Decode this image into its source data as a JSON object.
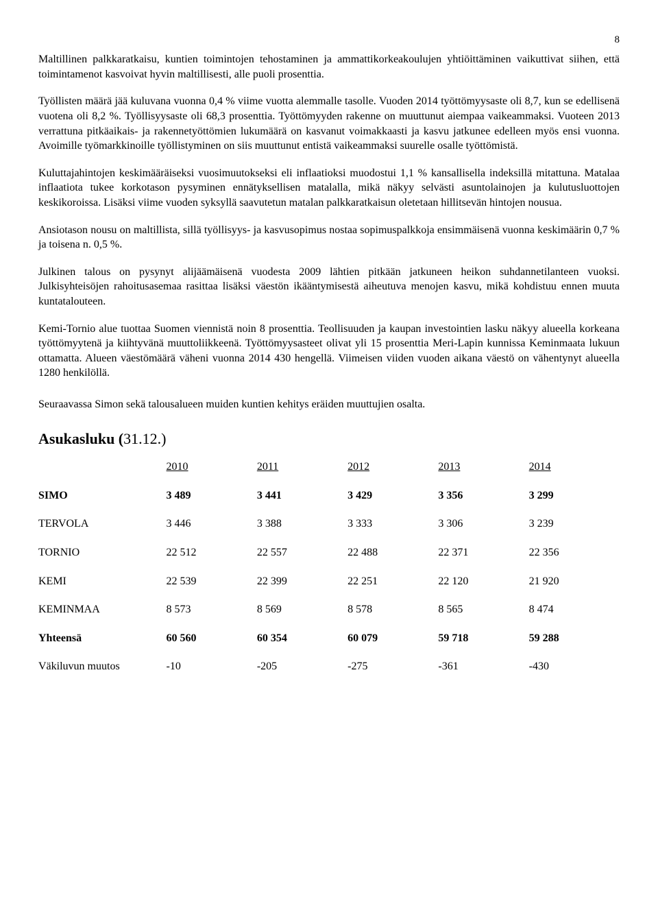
{
  "page_number": "8",
  "paragraphs": {
    "p1": "Maltillinen palkkaratkaisu, kuntien toimintojen tehostaminen ja ammattikorkeakoulujen yhtiöittäminen vaikuttivat siihen, että toimintamenot kasvoivat hyvin maltillisesti, alle puoli prosenttia.",
    "p2": "Työllisten määrä jää kuluvana vuonna 0,4 % viime vuotta alemmalle tasolle. Vuoden 2014 työttömyysaste oli 8,7, kun se edellisenä vuotena oli 8,2 %. Työllisyysaste oli 68,3 prosenttia. Työttömyyden rakenne on muuttunut aiempaa vaikeammaksi. Vuoteen 2013 verrattuna pitkäaikais- ja rakennetyöttömien lukumäärä on kasvanut voimakkaasti ja kasvu jatkunee edelleen myös ensi vuonna. Avoimille työmarkkinoille työllistyminen on siis muuttunut entistä vaikeammaksi suurelle osalle työttömistä.",
    "p3": "Kuluttajahintojen keskimääräiseksi vuosimuutokseksi eli inflaatioksi muodostui 1,1 % kansallisella indeksillä mitattuna. Matalaa inflaatiota tukee korkotason pysyminen ennätyksellisen matalalla, mikä näkyy selvästi asuntolainojen ja kulutusluottojen keskikoroissa. Lisäksi viime vuoden syksyllä saavutetun matalan palkkaratkaisun oletetaan hillitsevän hintojen nousua.",
    "p4": "Ansiotason nousu on maltillista, sillä työllisyys- ja kasvusopimus nostaa sopimuspalkkoja ensimmäisenä vuonna keskimäärin 0,7 % ja toisena n. 0,5 %.",
    "p5": "Julkinen talous on pysynyt alijäämäisenä vuodesta 2009 lähtien pitkään jatkuneen heikon suhdannetilanteen vuoksi. Julkisyhteisöjen rahoitusasemaa rasittaa lisäksi väestön ikääntymisestä aiheutuva menojen kasvu, mikä kohdistuu ennen muuta kuntatalouteen.",
    "p6": "Kemi-Tornio alue tuottaa Suomen viennistä noin 8 prosenttia. Teollisuuden ja kaupan investointien lasku näkyy alueella korkeana työttömyytenä ja kiihtyvänä muuttoliikkeenä. Työttömyysasteet olivat yli 15 prosenttia Meri-Lapin kunnissa Keminmaata lukuun ottamatta. Alueen väestömäärä väheni vuonna 2014 430 hengellä. Viimeisen viiden vuoden aikana väestö on vähentynyt alueella 1280 henkilöllä.",
    "intro": "Seuraavassa Simon sekä talousalueen muiden kuntien kehitys eräiden muuttujien osalta."
  },
  "table": {
    "heading_bold": "Asukasluku (",
    "heading_rest": "31.12.)",
    "columns": [
      "2010",
      "2011",
      "2012",
      "2013",
      "2014"
    ],
    "rows": [
      {
        "label": "SIMO",
        "values": [
          "3 489",
          "3 441",
          "3 429",
          "3 356",
          "3 299"
        ],
        "bold": true
      },
      {
        "label": "TERVOLA",
        "values": [
          "3 446",
          "3 388",
          "3 333",
          "3 306",
          "3 239"
        ],
        "bold": false
      },
      {
        "label": "TORNIO",
        "values": [
          "22 512",
          "22 557",
          "22 488",
          "22 371",
          "22 356"
        ],
        "bold": false
      },
      {
        "label": "KEMI",
        "values": [
          "22 539",
          "22 399",
          "22 251",
          "22 120",
          "21 920"
        ],
        "bold": false
      },
      {
        "label": "KEMINMAA",
        "values": [
          "8 573",
          "8 569",
          "8 578",
          "8 565",
          "8 474"
        ],
        "bold": false
      },
      {
        "label": "Yhteensä",
        "values": [
          "60 560",
          "60 354",
          "60 079",
          "59 718",
          "59 288"
        ],
        "bold": true
      },
      {
        "label": "Väkiluvun muutos",
        "values": [
          "-10",
          "-205",
          "-275",
          "-361",
          "-430"
        ],
        "bold": false
      }
    ]
  }
}
